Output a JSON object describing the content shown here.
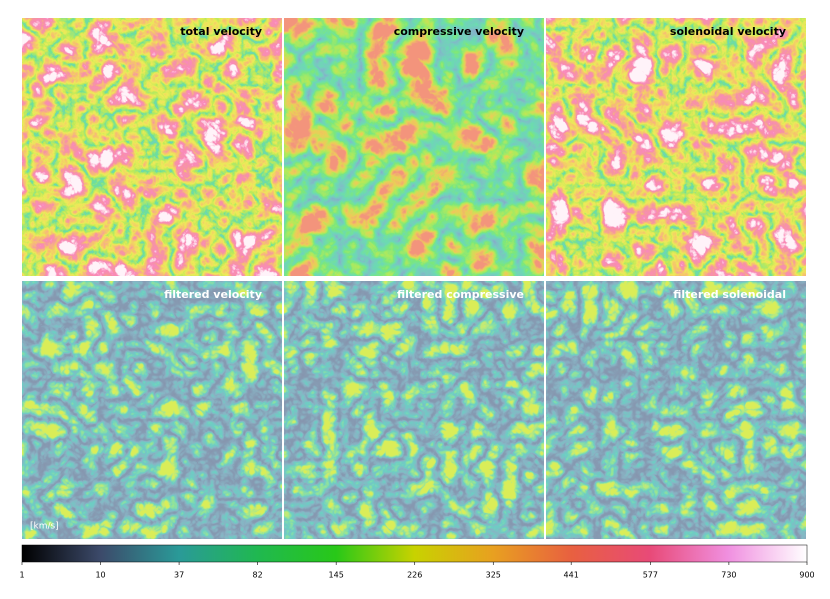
{
  "chart_data": {
    "type": "colorbar",
    "panels": [
      "total velocity",
      "compressive velocity",
      "solenoidal velocity",
      "filtered velocity",
      "filtered compressive",
      "filtered solenoidal"
    ],
    "unit": "[km/s]",
    "scale": "sqrt",
    "lim": [
      1,
      900
    ],
    "ticks": [
      1,
      10,
      37,
      82,
      145,
      226,
      325,
      441,
      577,
      730,
      900
    ],
    "colors": [
      "#000000",
      "#3c4a6a",
      "#2a9a98",
      "#20b850",
      "#28c818",
      "#c8d200",
      "#e8a020",
      "#e86040",
      "#e84a78",
      "#f090e0",
      "#ffffff"
    ]
  }
}
